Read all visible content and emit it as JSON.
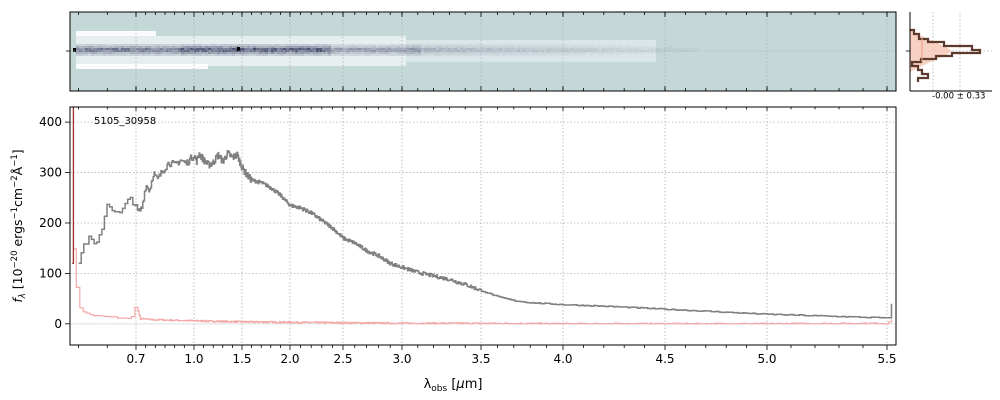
{
  "chart_data": [
    {
      "panel": "spectrum",
      "type": "line",
      "annotation": "5105_30958",
      "xlabel": "λobs [μm]",
      "ylabel": "fλ [10^-20 ergs^-1cm^-2Å^-1]",
      "x_scale": "stretched (steps in 1/x below 3.5 μm, linear above)",
      "xlim": [
        0.585,
        5.52
      ],
      "ylim": [
        -42,
        430
      ],
      "x_ticks": [
        0.7,
        1.0,
        1.5,
        2.0,
        2.5,
        3.0,
        3.5,
        4.0,
        4.5,
        5.0,
        5.5
      ],
      "x_tick_labels": [
        "0.7",
        "1.0",
        "1.5",
        "2.0",
        "2.5",
        "3.0",
        "3.5",
        "4.0",
        "4.5",
        "5.0",
        "5.5"
      ],
      "y_ticks": [
        0,
        100,
        200,
        300,
        400
      ],
      "y_tick_labels": [
        "0",
        "100",
        "200",
        "300",
        "400"
      ],
      "grid": true,
      "colors": {
        "flux": "#808080",
        "error": "#f4a7a7",
        "spike": "#9c2f2f"
      },
      "series": [
        {
          "role": "flux",
          "x": [
            0.6,
            0.61,
            0.62,
            0.63,
            0.64,
            0.65,
            0.67,
            0.69,
            0.71,
            0.73,
            0.75,
            0.77,
            0.79,
            0.81,
            0.84,
            0.87,
            0.9,
            0.93,
            0.96,
            1.0,
            1.03,
            1.05,
            1.1,
            1.15,
            1.2,
            1.25,
            1.3,
            1.35,
            1.4,
            1.45,
            1.5,
            1.55,
            1.6,
            1.7,
            1.8,
            1.9,
            2.0,
            2.1,
            2.2,
            2.3,
            2.4,
            2.5,
            2.6,
            2.7,
            2.8,
            2.9,
            3.0,
            3.1,
            3.2,
            3.3,
            3.4,
            3.5,
            3.6,
            3.7,
            3.8,
            3.9,
            4.0,
            4.2,
            4.4,
            4.6,
            4.8,
            5.0,
            5.2,
            5.4,
            5.49,
            5.51
          ],
          "y": [
            125,
            160,
            170,
            150,
            190,
            240,
            215,
            250,
            220,
            230,
            275,
            265,
            300,
            285,
            305,
            320,
            315,
            325,
            318,
            335,
            322,
            338,
            325,
            315,
            320,
            335,
            322,
            338,
            330,
            335,
            310,
            295,
            285,
            280,
            270,
            255,
            235,
            230,
            220,
            205,
            190,
            170,
            160,
            145,
            135,
            120,
            112,
            102,
            95,
            88,
            78,
            66,
            54,
            46,
            42,
            40,
            38,
            35,
            31,
            27,
            23,
            19,
            16,
            13,
            12,
            40
          ]
        },
        {
          "role": "error",
          "x": [
            0.59,
            0.595,
            0.6,
            0.61,
            0.62,
            0.63,
            0.65,
            0.67,
            0.69,
            0.7,
            0.72,
            0.75,
            0.8,
            0.9,
            1.0,
            1.2,
            1.5,
            2.0,
            2.5,
            3.0,
            3.5,
            4.0,
            4.5,
            5.0,
            5.5,
            5.51
          ],
          "y": [
            150,
            80,
            35,
            22,
            18,
            16,
            14,
            12,
            10,
            38,
            10,
            9,
            8,
            7,
            6,
            5,
            4,
            3,
            2,
            1,
            1,
            0,
            0,
            0,
            1,
            8
          ]
        },
        {
          "role": "spike",
          "x": [
            0.589,
            0.591
          ],
          "y": [
            120,
            430
          ]
        }
      ]
    },
    {
      "panel": "2d-spectrum",
      "type": "heatmap",
      "x_ticks": [
        0.7,
        1.0,
        1.5,
        2.0,
        2.5,
        3.0,
        3.5,
        4.0,
        4.5,
        5.0,
        5.5
      ],
      "colors": {
        "background": "#c5d8d8",
        "trace": "#3f4568",
        "light": "#eef4f6"
      }
    },
    {
      "panel": "profile",
      "type": "line",
      "label": "-0.00 ± 0.33",
      "colors": {
        "profile": "#5d3a2e",
        "fill": "#f6c9b6"
      }
    }
  ]
}
